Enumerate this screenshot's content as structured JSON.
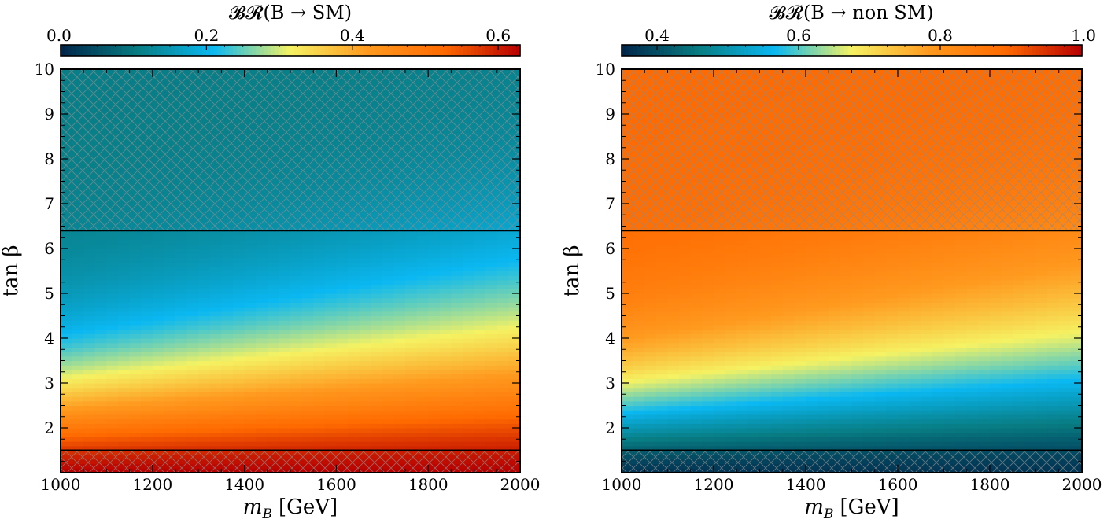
{
  "chart_data": [
    {
      "type": "heatmap",
      "title": "BR(B → SM)",
      "colorbar_label": "𝓑𝓡(B → SM)",
      "colorbar_ticks": [
        "0.0",
        "0.2",
        "0.4",
        "0.6"
      ],
      "colorbar_range": [
        0.0,
        0.63
      ],
      "xlabel": "m",
      "xlabel_sub": "B",
      "xlabel_unit": "[GeV]",
      "ylabel": "tan β",
      "xlim": [
        1000,
        2000
      ],
      "ylim": [
        1,
        10
      ],
      "xticks": [
        1000,
        1200,
        1400,
        1600,
        1800,
        2000
      ],
      "yticks": [
        2,
        3,
        4,
        5,
        6,
        7,
        8,
        9,
        10
      ],
      "excluded_regions_tanbeta": [
        [
          6.4,
          10
        ],
        [
          1,
          1.5
        ]
      ],
      "model": "BR_SM decreases with tan β; ≈0.62 at tan β≈1, ≈0.30 at tan β≈4, ≈0.12 at tan β≈10"
    },
    {
      "type": "heatmap",
      "title": "BR(B → non SM)",
      "colorbar_label": "𝓑𝓡(B → non SM)",
      "colorbar_ticks": [
        "0.4",
        "0.6",
        "0.8",
        "1.0"
      ],
      "colorbar_range": [
        0.35,
        1.0
      ],
      "xlabel": "m",
      "xlabel_sub": "B",
      "xlabel_unit": "[GeV]",
      "ylabel": "tan β",
      "xlim": [
        1000,
        2000
      ],
      "ylim": [
        1,
        10
      ],
      "xticks": [
        1000,
        1200,
        1400,
        1600,
        1800,
        2000
      ],
      "yticks": [
        2,
        3,
        4,
        5,
        6,
        7,
        8,
        9,
        10
      ],
      "excluded_regions_tanbeta": [
        [
          6.4,
          10
        ],
        [
          1,
          1.5
        ]
      ],
      "model": "BR_nonSM = 1 - BR_SM"
    }
  ],
  "colormap": [
    "#00254a",
    "#087c82",
    "#0ab8f2",
    "#f5f263",
    "#ff9a1f",
    "#ff6a00",
    "#b80000"
  ]
}
